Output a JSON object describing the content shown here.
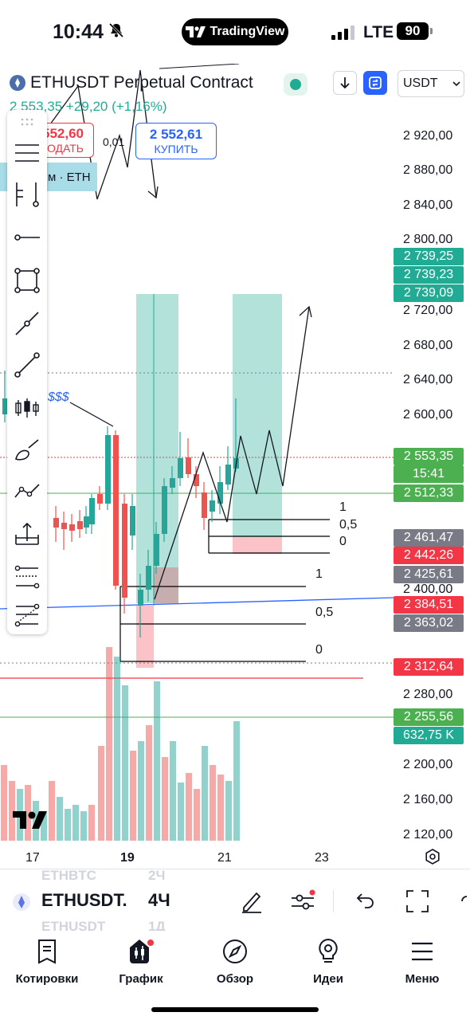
{
  "status_bar": {
    "time": "10:44",
    "app_pill": "TradingView",
    "network": "LTE",
    "battery": "90"
  },
  "header": {
    "symbol_title": "ETHUSDT Perpetual Contract",
    "currency": "USDT",
    "price_line": "2 553,35 +29,20 (+1,16%)",
    "sell_price": "2 552,60",
    "sell_label": "ПРОДАТЬ",
    "spread": "0,01",
    "buy_price": "2 552,61",
    "buy_label": "КУПИТЬ",
    "indicator_label": "м · ETH"
  },
  "toolbar": {
    "tools": [
      "menu-icon",
      "fork-icon",
      "horizontal-ray-icon",
      "rectangle-icon",
      "trend-line-icon",
      "ray-line-icon",
      "candles-icon",
      "brush-icon",
      "path-icon",
      "long-position-icon",
      "fib-retracement-icon",
      "fib-extension-icon"
    ]
  },
  "price_axis": {
    "labels": [
      "2 920,00",
      "2 880,00",
      "2 840,00",
      "2 800,00",
      "2 720,00",
      "2 680,00",
      "2 640,00",
      "2 600,00",
      "2 400,00",
      "2 280,00",
      "2 200,00",
      "2 160,00",
      "2 120,00"
    ],
    "tags": [
      {
        "text": "2 739,25",
        "color": "#22ab94"
      },
      {
        "text": "2 739,23",
        "color": "#22ab94"
      },
      {
        "text": "2 739,09",
        "color": "#22ab94"
      },
      {
        "text": "2 553,35",
        "color": "#4caf50"
      },
      {
        "text": "15:41",
        "color": "#4caf50"
      },
      {
        "text": "2 512,33",
        "color": "#4caf50"
      },
      {
        "text": "2 461,47",
        "color": "#787b86"
      },
      {
        "text": "2 442,26",
        "color": "#f23645"
      },
      {
        "text": "2 425,61",
        "color": "#787b86"
      },
      {
        "text": "2 384,51",
        "color": "#f23645"
      },
      {
        "text": "2 363,02",
        "color": "#787b86"
      },
      {
        "text": "2 312,64",
        "color": "#f23645"
      },
      {
        "text": "2 255,56",
        "color": "#4caf50"
      },
      {
        "text": "632,75 K",
        "color": "#22ab94"
      }
    ]
  },
  "fib_levels_upper": [
    "1",
    "0,5",
    "0"
  ],
  "fib_levels_lower": [
    "1",
    "0,5",
    "0"
  ],
  "annotation_dollars": "$$$",
  "time_axis": [
    "17",
    "19",
    "21",
    "23"
  ],
  "symbol_bar": {
    "ghost_top": "ETHBTC",
    "ghost_top_int": "2Ч",
    "symbol": "ETHUSDT.",
    "interval": "4Ч",
    "ghost_bottom": "ETHUSDT",
    "ghost_bottom_int": "1Д"
  },
  "nav": [
    {
      "label": "Котировки",
      "icon": "watchlist-icon"
    },
    {
      "label": "График",
      "icon": "chart-icon"
    },
    {
      "label": "Обзор",
      "icon": "compass-icon"
    },
    {
      "label": "Идеи",
      "icon": "lightbulb-icon"
    },
    {
      "label": "Меню",
      "icon": "menu-icon"
    }
  ]
}
